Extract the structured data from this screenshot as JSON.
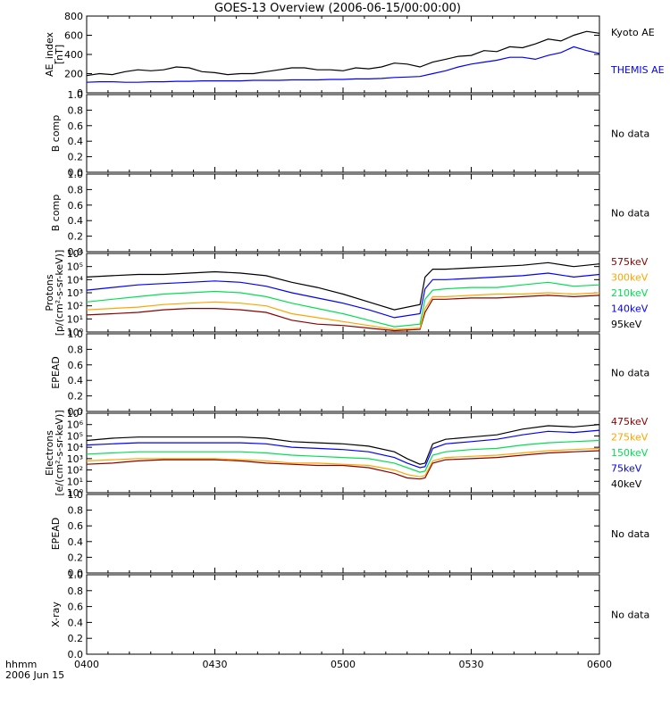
{
  "title": "GOES-13 Overview (2006-06-15/00:00:00)",
  "x_axis": {
    "ticks": [
      "0400",
      "0430",
      "0500",
      "0530",
      "0600"
    ],
    "label_line1": "hhmm",
    "label_line2": "2006 Jun 15"
  },
  "no_data_text": "No data",
  "colors": {
    "black": "#000000",
    "blue": "#0000ff",
    "green": "#00e050",
    "orange": "#ffa500",
    "darkred": "#8b0000"
  },
  "chart_data": [
    {
      "type": "line",
      "panel": "ae",
      "ylabel_lines": [
        "AE_index",
        "[nT]"
      ],
      "ylim": [
        0,
        800
      ],
      "yticks": [
        "0",
        "200",
        "400",
        "600",
        "800"
      ],
      "x_hours": [
        4.0,
        6.0
      ],
      "series": [
        {
          "name": "Kyoto AE",
          "color": "#000000",
          "x": [
            4.0,
            4.05,
            4.1,
            4.15,
            4.2,
            4.25,
            4.3,
            4.35,
            4.4,
            4.45,
            4.5,
            4.55,
            4.6,
            4.65,
            4.7,
            4.75,
            4.8,
            4.85,
            4.9,
            4.95,
            5.0,
            5.05,
            5.1,
            5.15,
            5.2,
            5.25,
            5.3,
            5.35,
            5.4,
            5.45,
            5.5,
            5.55,
            5.6,
            5.65,
            5.7,
            5.75,
            5.8,
            5.85,
            5.9,
            5.95,
            6.0
          ],
          "values": [
            180,
            200,
            190,
            220,
            240,
            230,
            240,
            270,
            260,
            220,
            210,
            190,
            200,
            200,
            220,
            240,
            260,
            260,
            240,
            240,
            230,
            260,
            250,
            270,
            310,
            300,
            270,
            320,
            350,
            380,
            390,
            440,
            430,
            480,
            470,
            510,
            560,
            540,
            600,
            640,
            620
          ]
        },
        {
          "name": "THEMIS AE",
          "color": "#0000ff",
          "x": [
            4.0,
            4.05,
            4.1,
            4.15,
            4.2,
            4.25,
            4.3,
            4.35,
            4.4,
            4.45,
            4.5,
            4.55,
            4.6,
            4.65,
            4.7,
            4.75,
            4.8,
            4.85,
            4.9,
            4.95,
            5.0,
            5.05,
            5.1,
            5.15,
            5.2,
            5.25,
            5.3,
            5.35,
            5.4,
            5.45,
            5.5,
            5.55,
            5.6,
            5.65,
            5.7,
            5.75,
            5.8,
            5.85,
            5.9,
            5.95,
            6.0
          ],
          "values": [
            110,
            115,
            115,
            110,
            110,
            115,
            115,
            120,
            120,
            125,
            125,
            125,
            125,
            130,
            130,
            130,
            135,
            135,
            135,
            140,
            140,
            145,
            145,
            150,
            160,
            165,
            170,
            200,
            230,
            270,
            300,
            320,
            340,
            370,
            370,
            350,
            390,
            420,
            480,
            440,
            410
          ]
        }
      ]
    },
    {
      "type": "line",
      "panel": "bcomp1",
      "ylabel_lines": [
        "B comp"
      ],
      "ylim": [
        0,
        1
      ],
      "yticks": [
        "0.0",
        "0.2",
        "0.4",
        "0.6",
        "0.8",
        "1.0"
      ],
      "no_data": true
    },
    {
      "type": "line",
      "panel": "bcomp2",
      "ylabel_lines": [
        "B comp"
      ],
      "ylim": [
        0,
        1
      ],
      "yticks": [
        "0.0",
        "0.2",
        "0.4",
        "0.6",
        "0.8",
        "1.0"
      ],
      "no_data": true
    },
    {
      "type": "line",
      "panel": "protons",
      "log_scale": true,
      "ylabel_lines": [
        "Protons",
        "[p/(cm²-s-sr-keV)]"
      ],
      "ylim_exp": [
        0,
        6
      ],
      "yticks": [
        "10⁰",
        "10¹",
        "10²",
        "10³",
        "10⁴",
        "10⁵",
        "10⁶"
      ],
      "series": [
        {
          "name": "575keV",
          "color": "#8b0000",
          "x": [
            4.0,
            4.1,
            4.2,
            4.3,
            4.4,
            4.5,
            4.6,
            4.7,
            4.8,
            4.9,
            5.0,
            5.1,
            5.2,
            5.3,
            5.32,
            5.35,
            5.4,
            5.5,
            5.6,
            5.7,
            5.8,
            5.9,
            6.0
          ],
          "values": [
            1.3,
            1.4,
            1.5,
            1.7,
            1.8,
            1.8,
            1.7,
            1.5,
            0.9,
            0.6,
            0.5,
            0.3,
            0.1,
            0.2,
            1.5,
            2.5,
            2.5,
            2.6,
            2.6,
            2.7,
            2.8,
            2.7,
            2.8
          ]
        },
        {
          "name": "300keV",
          "color": "#ffa500",
          "x": [
            4.0,
            4.1,
            4.2,
            4.3,
            4.4,
            4.5,
            4.6,
            4.7,
            4.8,
            4.9,
            5.0,
            5.1,
            5.2,
            5.3,
            5.32,
            5.35,
            5.4,
            5.5,
            5.6,
            5.7,
            5.8,
            5.9,
            6.0
          ],
          "values": [
            1.7,
            1.8,
            1.9,
            2.1,
            2.2,
            2.3,
            2.2,
            2.0,
            1.4,
            1.1,
            0.8,
            0.5,
            0.2,
            0.3,
            1.8,
            2.7,
            2.7,
            2.8,
            2.9,
            2.9,
            3.0,
            2.9,
            3.0
          ]
        },
        {
          "name": "210keV",
          "color": "#00e050",
          "x": [
            4.0,
            4.1,
            4.2,
            4.3,
            4.4,
            4.5,
            4.6,
            4.7,
            4.8,
            4.9,
            5.0,
            5.1,
            5.2,
            5.3,
            5.32,
            5.35,
            5.4,
            5.5,
            5.6,
            5.7,
            5.8,
            5.9,
            6.0
          ],
          "values": [
            2.3,
            2.5,
            2.7,
            2.9,
            3.0,
            3.1,
            3.0,
            2.7,
            2.2,
            1.8,
            1.4,
            0.9,
            0.4,
            0.6,
            2.5,
            3.2,
            3.3,
            3.4,
            3.4,
            3.6,
            3.8,
            3.5,
            3.6
          ]
        },
        {
          "name": "140keV",
          "color": "#0000ff",
          "x": [
            4.0,
            4.1,
            4.2,
            4.3,
            4.4,
            4.5,
            4.6,
            4.7,
            4.8,
            4.9,
            5.0,
            5.1,
            5.2,
            5.3,
            5.32,
            5.35,
            5.4,
            5.5,
            5.6,
            5.7,
            5.8,
            5.9,
            6.0
          ],
          "values": [
            3.2,
            3.4,
            3.6,
            3.7,
            3.8,
            3.9,
            3.8,
            3.5,
            3.0,
            2.6,
            2.2,
            1.7,
            1.1,
            1.4,
            3.3,
            4.0,
            4.0,
            4.1,
            4.2,
            4.3,
            4.5,
            4.2,
            4.4
          ]
        },
        {
          "name": "95keV",
          "color": "#000000",
          "x": [
            4.0,
            4.1,
            4.2,
            4.3,
            4.4,
            4.5,
            4.6,
            4.7,
            4.8,
            4.9,
            5.0,
            5.1,
            5.2,
            5.3,
            5.32,
            5.35,
            5.4,
            5.5,
            5.6,
            5.7,
            5.8,
            5.9,
            6.0
          ],
          "values": [
            4.2,
            4.3,
            4.4,
            4.4,
            4.5,
            4.6,
            4.5,
            4.3,
            3.8,
            3.4,
            2.9,
            2.3,
            1.7,
            2.1,
            4.2,
            4.8,
            4.8,
            4.9,
            5.0,
            5.1,
            5.3,
            5.0,
            5.2
          ]
        }
      ]
    },
    {
      "type": "line",
      "panel": "epead1",
      "ylabel_lines": [
        "EPEAD"
      ],
      "ylim": [
        0,
        1
      ],
      "yticks": [
        "0.0",
        "0.2",
        "0.4",
        "0.6",
        "0.8",
        "1.0"
      ],
      "no_data": true
    },
    {
      "type": "line",
      "panel": "electrons",
      "log_scale": true,
      "ylabel_lines": [
        "Electrons",
        "[e/(cm²-s-sr-keV)]"
      ],
      "ylim_exp": [
        0,
        7
      ],
      "yticks": [
        "10⁰",
        "10¹",
        "10²",
        "10³",
        "10⁴",
        "10⁵",
        "10⁶",
        "10⁷"
      ],
      "series": [
        {
          "name": "475keV",
          "color": "#8b0000",
          "x": [
            4.0,
            4.1,
            4.2,
            4.3,
            4.4,
            4.5,
            4.6,
            4.7,
            4.8,
            4.9,
            5.0,
            5.1,
            5.2,
            5.25,
            5.3,
            5.32,
            5.35,
            5.4,
            5.5,
            5.6,
            5.7,
            5.8,
            5.9,
            6.0
          ],
          "values": [
            2.5,
            2.6,
            2.8,
            2.9,
            2.9,
            2.9,
            2.8,
            2.6,
            2.5,
            2.4,
            2.4,
            2.2,
            1.7,
            1.3,
            1.2,
            1.3,
            2.6,
            2.9,
            3.0,
            3.1,
            3.3,
            3.5,
            3.6,
            3.7
          ]
        },
        {
          "name": "275keV",
          "color": "#ffa500",
          "x": [
            4.0,
            4.1,
            4.2,
            4.3,
            4.4,
            4.5,
            4.6,
            4.7,
            4.8,
            4.9,
            5.0,
            5.1,
            5.2,
            5.25,
            5.3,
            5.32,
            5.35,
            5.4,
            5.5,
            5.6,
            5.7,
            5.8,
            5.9,
            6.0
          ],
          "values": [
            2.8,
            2.9,
            3.0,
            3.0,
            3.0,
            3.0,
            2.9,
            2.8,
            2.6,
            2.6,
            2.5,
            2.4,
            2.0,
            1.6,
            1.4,
            1.5,
            2.8,
            3.1,
            3.2,
            3.3,
            3.5,
            3.7,
            3.8,
            3.9
          ]
        },
        {
          "name": "150keV",
          "color": "#00e050",
          "x": [
            4.0,
            4.1,
            4.2,
            4.3,
            4.4,
            4.5,
            4.6,
            4.7,
            4.8,
            4.9,
            5.0,
            5.1,
            5.2,
            5.25,
            5.3,
            5.32,
            5.35,
            5.4,
            5.5,
            5.6,
            5.7,
            5.8,
            5.9,
            6.0
          ],
          "values": [
            3.4,
            3.5,
            3.6,
            3.6,
            3.6,
            3.6,
            3.6,
            3.5,
            3.3,
            3.2,
            3.1,
            3.0,
            2.6,
            2.2,
            1.8,
            1.9,
            3.3,
            3.6,
            3.8,
            3.9,
            4.2,
            4.4,
            4.5,
            4.6
          ]
        },
        {
          "name": "75keV",
          "color": "#0000ff",
          "x": [
            4.0,
            4.1,
            4.2,
            4.3,
            4.4,
            4.5,
            4.6,
            4.7,
            4.8,
            4.9,
            5.0,
            5.1,
            5.2,
            5.25,
            5.3,
            5.32,
            5.35,
            5.4,
            5.5,
            5.6,
            5.7,
            5.8,
            5.9,
            6.0
          ],
          "values": [
            4.2,
            4.3,
            4.4,
            4.4,
            4.4,
            4.4,
            4.4,
            4.3,
            4.0,
            3.9,
            3.8,
            3.6,
            3.1,
            2.6,
            2.2,
            2.3,
            3.9,
            4.3,
            4.5,
            4.7,
            5.1,
            5.4,
            5.3,
            5.5
          ]
        },
        {
          "name": "40keV",
          "color": "#000000",
          "x": [
            4.0,
            4.1,
            4.2,
            4.3,
            4.4,
            4.5,
            4.6,
            4.7,
            4.8,
            4.9,
            5.0,
            5.1,
            5.2,
            5.25,
            5.3,
            5.32,
            5.35,
            5.4,
            5.5,
            5.6,
            5.7,
            5.8,
            5.9,
            6.0
          ],
          "values": [
            4.6,
            4.8,
            4.9,
            4.9,
            4.9,
            4.9,
            4.9,
            4.8,
            4.5,
            4.4,
            4.3,
            4.1,
            3.6,
            3.0,
            2.5,
            2.6,
            4.3,
            4.7,
            4.9,
            5.1,
            5.6,
            5.9,
            5.8,
            6.0
          ]
        }
      ]
    },
    {
      "type": "line",
      "panel": "epead2",
      "ylabel_lines": [
        "EPEAD"
      ],
      "ylim": [
        0,
        1
      ],
      "yticks": [
        "0.0",
        "0.2",
        "0.4",
        "0.6",
        "0.8",
        "1.0"
      ],
      "no_data": true
    },
    {
      "type": "line",
      "panel": "xray",
      "ylabel_lines": [
        "X-ray"
      ],
      "ylim": [
        0,
        1
      ],
      "yticks": [
        "0.0",
        "0.2",
        "0.4",
        "0.6",
        "0.8",
        "1.0"
      ],
      "no_data": true
    }
  ]
}
